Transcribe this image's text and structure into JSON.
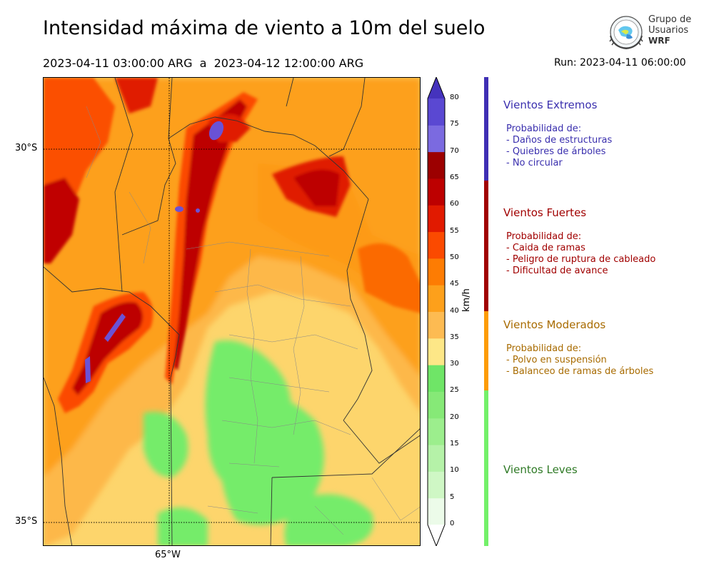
{
  "header": {
    "title": "Intensidad máxima de viento a 10m del suelo",
    "subtitle": "2023-04-11 03:00:00 ARG  a  2023-04-12 12:00:00 ARG",
    "run": "Run: 2023-04-11 06:00:00"
  },
  "logo": {
    "line1": "Grupo de",
    "line2": "Usuarios",
    "line3": "WRF"
  },
  "map_axes": {
    "lat_labels": [
      "30°S",
      "35°S"
    ],
    "lon_labels": [
      "65°W"
    ]
  },
  "colorbar": {
    "unit": "km/h",
    "ticks": [
      "80",
      "75",
      "70",
      "65",
      "60",
      "55",
      "50",
      "45",
      "40",
      "35",
      "30",
      "25",
      "20",
      "15",
      "10",
      "5",
      "0"
    ],
    "colors": [
      "#ecfbe9",
      "#cff7c5",
      "#b5f2a8",
      "#9cee8d",
      "#86e977",
      "#6fe567",
      "#fde787",
      "#fdbb52",
      "#fda01b",
      "#fd7c03",
      "#fb4a00",
      "#e11a00",
      "#bd0000",
      "#9c0000",
      "#7b6ae0",
      "#5a48d2",
      "#4533bd"
    ]
  },
  "categories": [
    {
      "title": "Vientos Extremos",
      "color": "#3a2fae",
      "bar_color": "#3f2fb4",
      "lines": [
        "Probabilidad de:",
        "- Daños de estructuras",
        "- Quiebres de árboles",
        "- No circular"
      ]
    },
    {
      "title": "Vientos Fuertes",
      "color": "#a10000",
      "bar_color": "#a10000",
      "lines": [
        "Probabilidad de:",
        "- Caida de ramas",
        "- Peligro de ruptura de cableado",
        "- Dificultad de avance"
      ]
    },
    {
      "title": "Vientos Moderados",
      "color": "#a86b00",
      "bar_color": "#fd9c08",
      "lines": [
        "Probabilidad de:",
        "- Polvo en suspensión",
        "- Balanceo de ramas de árboles"
      ]
    },
    {
      "title": "Vientos Leves",
      "color": "#2f7a26",
      "bar_color": "#74f06a",
      "lines": []
    }
  ]
}
